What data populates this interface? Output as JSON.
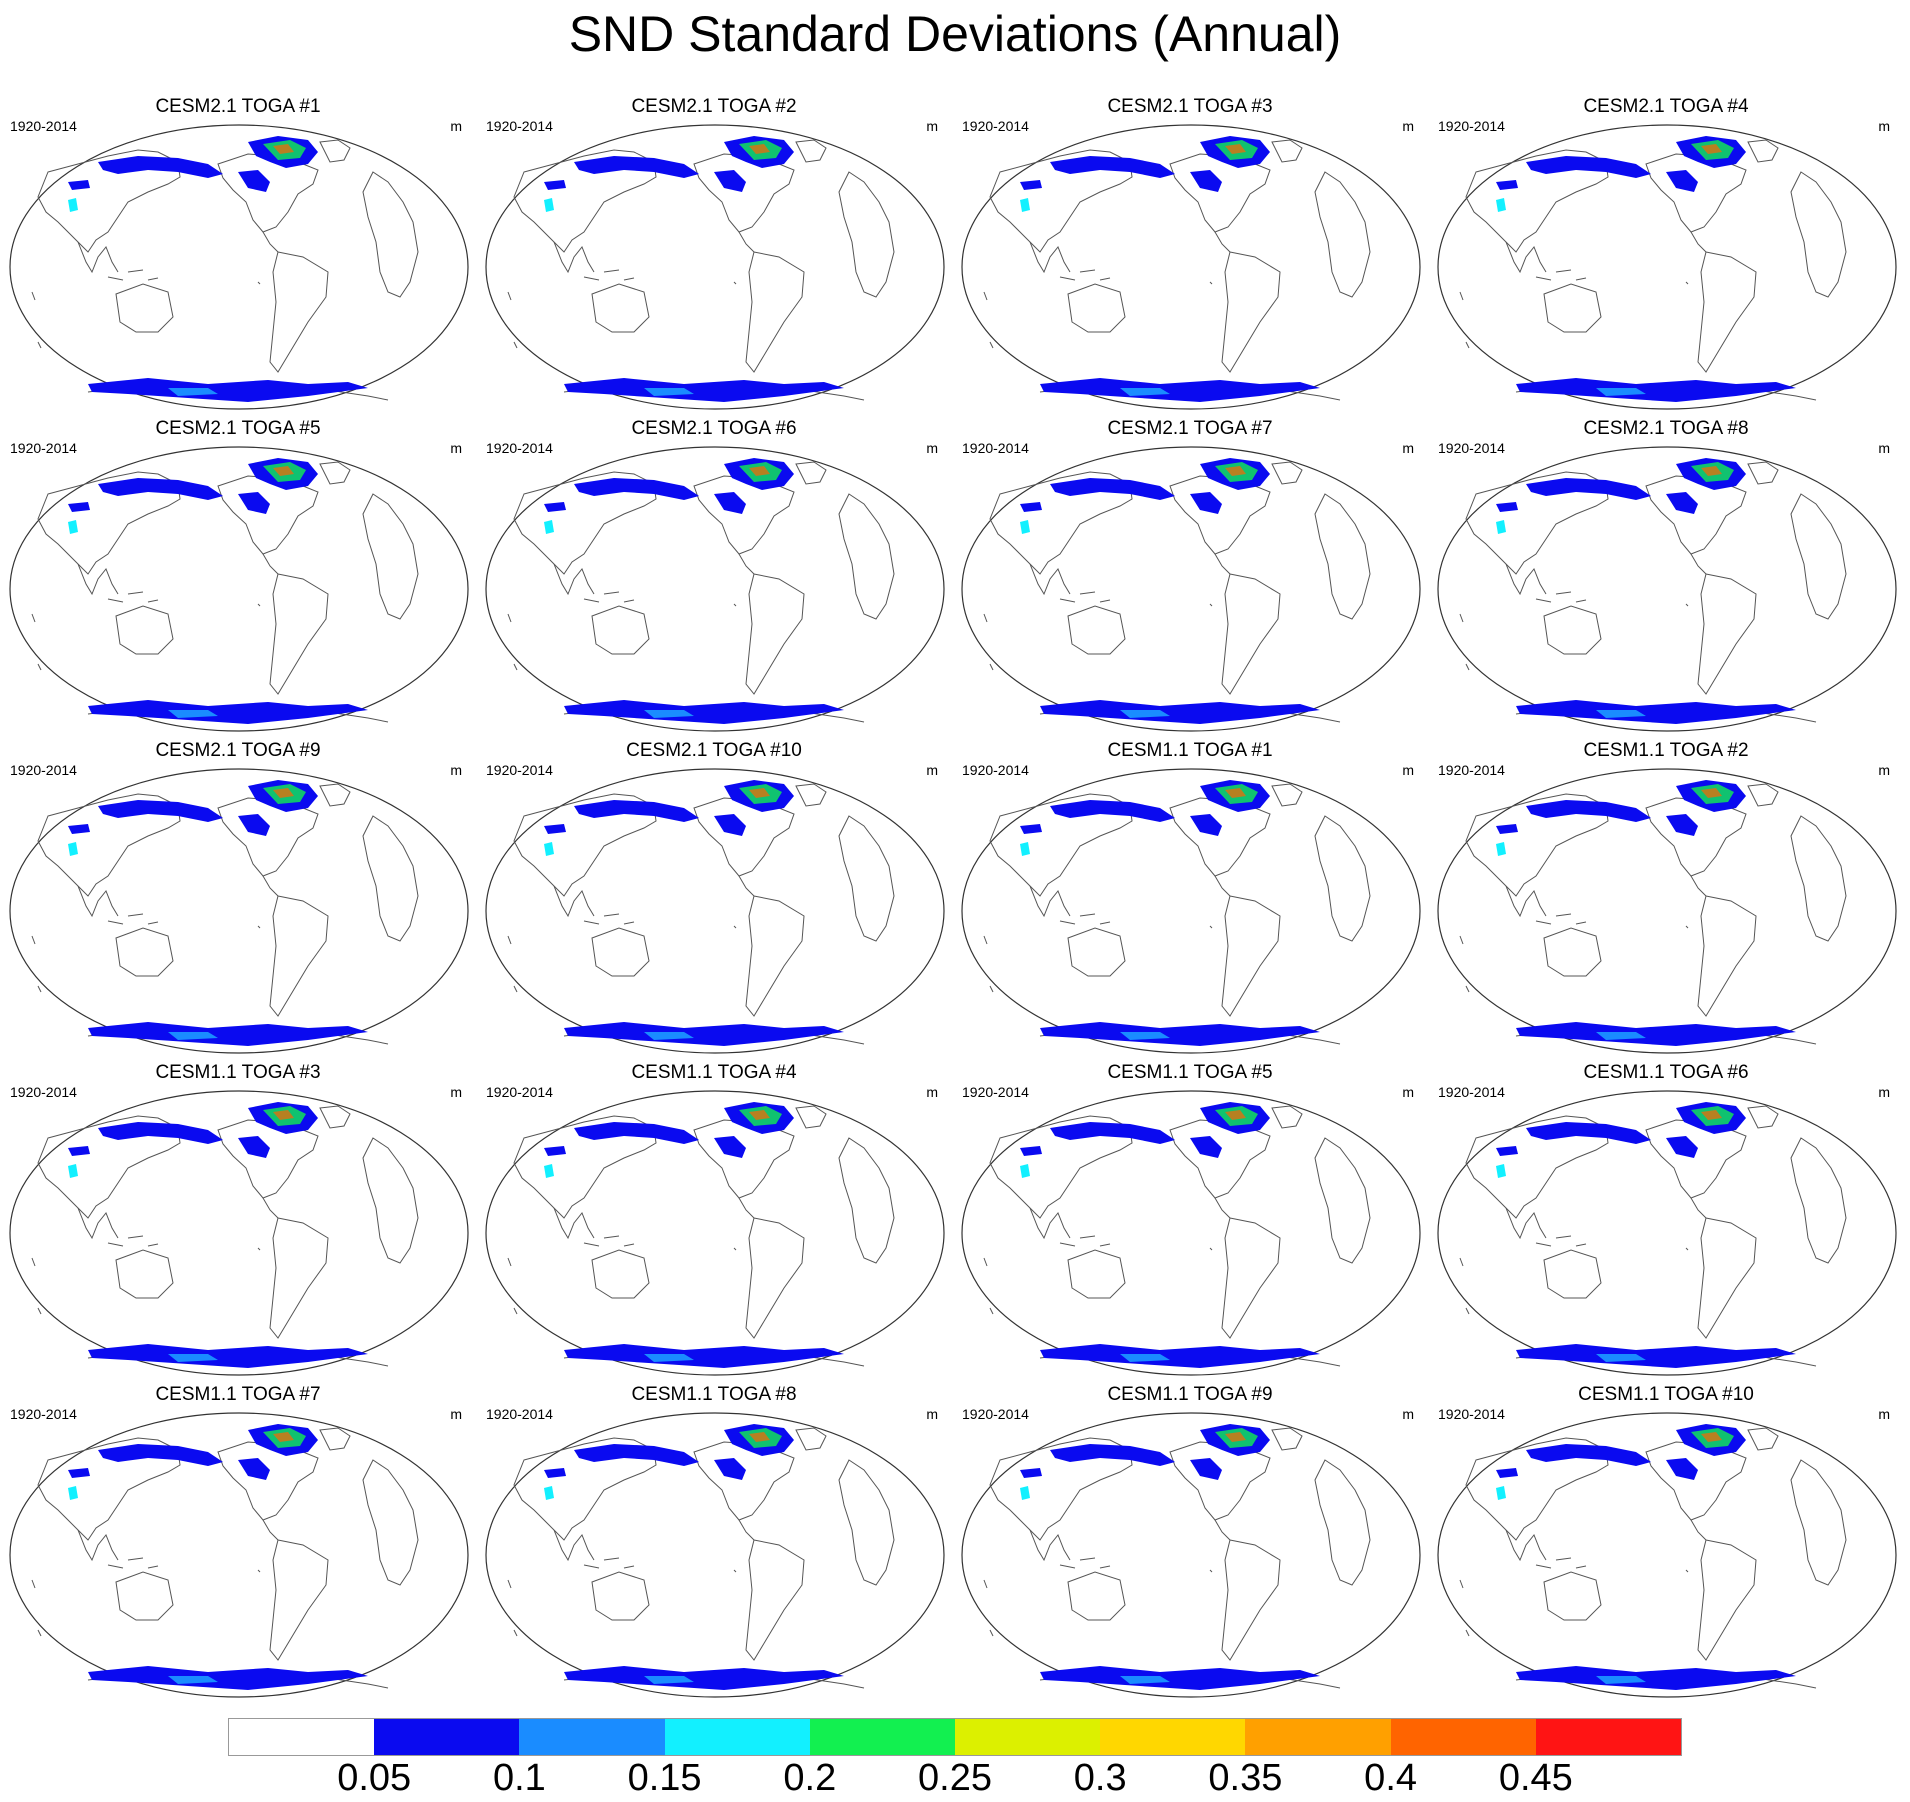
{
  "title": "SND Standard Deviations (Annual)",
  "panels": [
    {
      "title": "CESM2.1 TOGA #1",
      "period": "1920-2014",
      "units": "m"
    },
    {
      "title": "CESM2.1 TOGA #2",
      "period": "1920-2014",
      "units": "m"
    },
    {
      "title": "CESM2.1 TOGA #3",
      "period": "1920-2014",
      "units": "m"
    },
    {
      "title": "CESM2.1 TOGA #4",
      "period": "1920-2014",
      "units": "m"
    },
    {
      "title": "CESM2.1 TOGA #5",
      "period": "1920-2014",
      "units": "m"
    },
    {
      "title": "CESM2.1 TOGA #6",
      "period": "1920-2014",
      "units": "m"
    },
    {
      "title": "CESM2.1 TOGA #7",
      "period": "1920-2014",
      "units": "m"
    },
    {
      "title": "CESM2.1 TOGA #8",
      "period": "1920-2014",
      "units": "m"
    },
    {
      "title": "CESM2.1 TOGA #9",
      "period": "1920-2014",
      "units": "m"
    },
    {
      "title": "CESM2.1 TOGA #10",
      "period": "1920-2014",
      "units": "m"
    },
    {
      "title": "CESM1.1 TOGA #1",
      "period": "1920-2014",
      "units": "m"
    },
    {
      "title": "CESM1.1 TOGA #2",
      "period": "1920-2014",
      "units": "m"
    },
    {
      "title": "CESM1.1 TOGA #3",
      "period": "1920-2014",
      "units": "m"
    },
    {
      "title": "CESM1.1 TOGA #4",
      "period": "1920-2014",
      "units": "m"
    },
    {
      "title": "CESM1.1 TOGA #5",
      "period": "1920-2014",
      "units": "m"
    },
    {
      "title": "CESM1.1 TOGA #6",
      "period": "1920-2014",
      "units": "m"
    },
    {
      "title": "CESM1.1 TOGA #7",
      "period": "1920-2014",
      "units": "m"
    },
    {
      "title": "CESM1.1 TOGA #8",
      "period": "1920-2014",
      "units": "m"
    },
    {
      "title": "CESM1.1 TOGA #9",
      "period": "1920-2014",
      "units": "m"
    },
    {
      "title": "CESM1.1 TOGA #10",
      "period": "1920-2014",
      "units": "m"
    }
  ],
  "colorbar": {
    "colors": [
      "#ffffff",
      "#0a0af0",
      "#1a8cff",
      "#12f0ff",
      "#12f050",
      "#dcf000",
      "#ffd700",
      "#ffa000",
      "#ff6400",
      "#ff1414"
    ],
    "labels": [
      "0.05",
      "0.1",
      "0.15",
      "0.2",
      "0.25",
      "0.3",
      "0.35",
      "0.4",
      "0.45"
    ]
  }
}
